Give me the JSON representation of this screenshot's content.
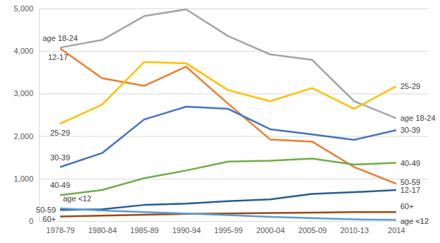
{
  "chart_data": {
    "type": "line",
    "categories": [
      "1978-79",
      "1980-84",
      "1985-89",
      "1990-94",
      "1995-99",
      "2000-04",
      "2005-09",
      "2010-13",
      "2014"
    ],
    "series": [
      {
        "name": "age 18-24",
        "color": "#a5a5a5",
        "values": [
          4080,
          4260,
          4820,
          4980,
          4350,
          3920,
          3790,
          2820,
          2420
        ]
      },
      {
        "name": "12-17",
        "color": "#ed7d31",
        "values": [
          4060,
          3360,
          3180,
          3630,
          2760,
          1920,
          1870,
          1270,
          880
        ]
      },
      {
        "name": "25-29",
        "color": "#ffc000",
        "values": [
          2290,
          2740,
          3740,
          3710,
          3080,
          2820,
          3130,
          2640,
          3170
        ]
      },
      {
        "name": "30-39",
        "color": "#4472c4",
        "values": [
          1270,
          1600,
          2390,
          2690,
          2640,
          2160,
          2040,
          1910,
          2140
        ]
      },
      {
        "name": "40-49",
        "color": "#70ad47",
        "values": [
          610,
          730,
          1010,
          1190,
          1400,
          1420,
          1470,
          1330,
          1370
        ]
      },
      {
        "name": "50-59",
        "color": "#255e91",
        "values": [
          260,
          280,
          380,
          410,
          470,
          510,
          640,
          680,
          730
        ]
      },
      {
        "name": "60+",
        "color": "#9e480e",
        "values": [
          110,
          130,
          150,
          170,
          180,
          190,
          200,
          210,
          210
        ]
      },
      {
        "name": "age <12",
        "color": "#5b9bd5",
        "values": [
          300,
          250,
          210,
          180,
          140,
          100,
          70,
          40,
          30
        ]
      }
    ],
    "ylim": [
      0,
      5000
    ],
    "yticks": [
      0,
      {
        "value": 1000,
        "label": "1,000"
      },
      {
        "value": 2000,
        "label": "2,000"
      },
      {
        "value": 3000,
        "label": "3,000"
      },
      {
        "value": 4000,
        "label": "4,000"
      },
      {
        "value": 5000,
        "label": "5,000"
      }
    ],
    "grid": true
  }
}
